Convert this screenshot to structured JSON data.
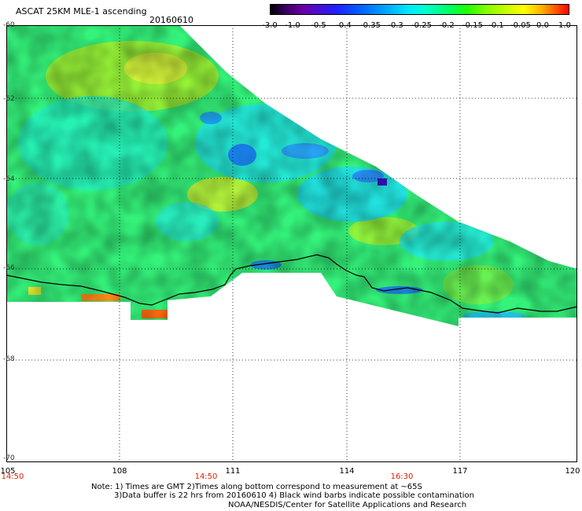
{
  "header": {
    "title": "ASCAT 25KM MLE-1 ascending",
    "date": "20160610"
  },
  "colorbar": {
    "ticks": [
      "-3.0",
      "-1.0",
      "-0.5",
      "-0.4",
      "-0.35",
      "-0.3",
      "-0.25",
      "-0.2",
      "-0.15",
      "-0.1",
      "-0.05",
      "0.0",
      "1.0"
    ]
  },
  "map": {
    "lat_labels": [
      "-60",
      "-62",
      "-64",
      "-66",
      "-68",
      "-70"
    ],
    "lon_labels": [
      "105",
      "108",
      "111",
      "114",
      "117",
      "120"
    ],
    "time_labels": [
      "14:50",
      "14:50",
      "16:30"
    ],
    "background_color": "#ffffff",
    "grid_color": "#000000",
    "coastline_color": "#000000"
  },
  "notes": {
    "line1": "Note: 1) Times are GMT 2)Times along bottom correspond to measurement at ~65S",
    "line2": "3)Data buffer is 22 hrs from 20160610 4) Black wind barbs indicate possible contamination",
    "credit": "NOAA/NESDIS/Center for Satellite Applications and Research"
  }
}
